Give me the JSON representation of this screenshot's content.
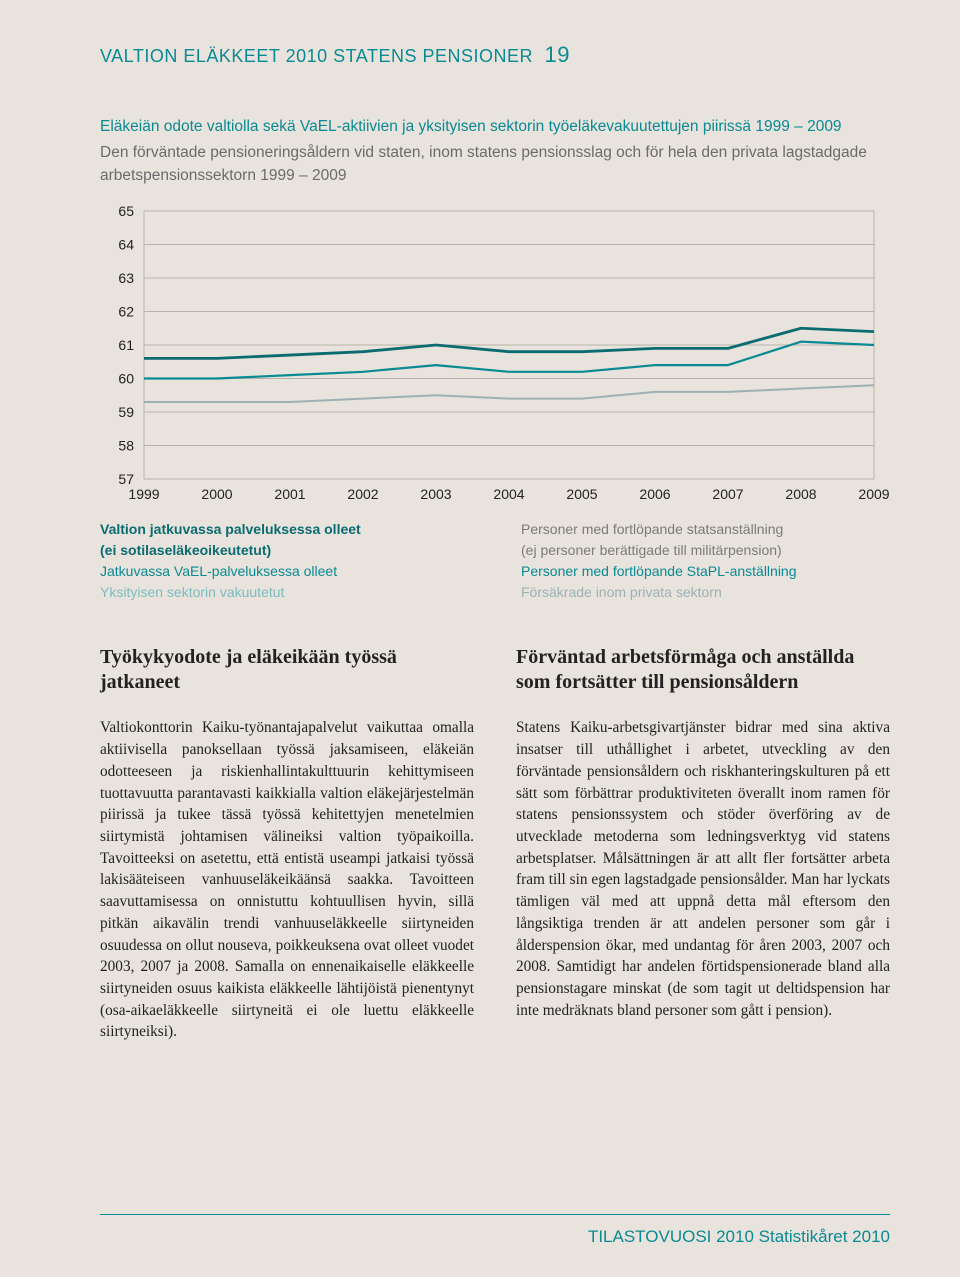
{
  "header": {
    "title": "VALTION ELÄKKEET 2010 STATENS PENSIONER",
    "page": "19"
  },
  "chart": {
    "type": "line",
    "title": "Eläkeiän odote valtiolla sekä VaEL-aktiivien ja yksityisen sektorin työeläkevakuutettujen piirissä 1999 – 2009",
    "subtitle": "Den förväntade pensioneringsåldern vid staten, inom statens pensionsslag och för hela den privata lagstadgade arbetspensionssektorn 1999 – 2009",
    "ylim": [
      57,
      65
    ],
    "ytick_step": 1,
    "xlabels": [
      "1999",
      "2000",
      "2001",
      "2002",
      "2003",
      "2004",
      "2005",
      "2006",
      "2007",
      "2008",
      "2009"
    ],
    "grid_color": "#b8b3aa",
    "plot_bg": "#e8e3dc",
    "series": [
      {
        "name": "valtio-jatkuva",
        "color": "#0a6b71",
        "width": 2.8,
        "values": [
          60.6,
          60.6,
          60.7,
          60.8,
          61.0,
          60.8,
          60.8,
          60.9,
          60.9,
          61.5,
          61.4
        ]
      },
      {
        "name": "vael-jatkuva",
        "color": "#0a8a93",
        "width": 2.2,
        "values": [
          60.0,
          60.0,
          60.1,
          60.2,
          60.4,
          60.2,
          60.2,
          60.4,
          60.4,
          61.1,
          61.0
        ]
      },
      {
        "name": "yksityinen",
        "color": "#9db1b3",
        "width": 2.0,
        "values": [
          59.3,
          59.3,
          59.3,
          59.4,
          59.5,
          59.4,
          59.4,
          59.6,
          59.6,
          59.7,
          59.8
        ]
      }
    ]
  },
  "legend": {
    "left": {
      "l1a": "Valtion jatkuvassa palveluksessa olleet",
      "l1b": "(ei sotilaseläkeoikeutetut)",
      "l2": "Jatkuvassa VaEL-palveluksessa olleet",
      "l3": "Yksityisen sektorin vakuutetut"
    },
    "right": {
      "l1a": "Personer med fortlöpande statsanställning",
      "l1b": "(ej personer berättigade till militärpension)",
      "l2": "Personer med fortlöpande StaPL-anställning",
      "l3": "Försäkrade inom privata sektorn"
    }
  },
  "body": {
    "left_heading": "Työkykyodote ja eläkeikään työssä jatkaneet",
    "left_text": "Valtiokonttorin Kaiku-työnantajapalvelut vaikuttaa omalla aktiivisella panoksellaan työssä jaksamiseen, eläkeiän odotteeseen ja riskienhallintakulttuurin kehittymiseen tuottavuutta parantavasti kaikkialla valtion eläkejärjestelmän piirissä ja tukee tässä työssä kehitettyjen menetelmien siirtymistä johtamisen välineiksi valtion työpaikoilla. Tavoitteeksi on asetettu, että entistä useampi jatkaisi työssä lakisääteiseen vanhuuseläkeikäänsä saakka. Tavoitteen saavuttamisessa on onnistuttu kohtuullisen hyvin, sillä pitkän aikavälin trendi vanhuuseläkkeelle siirtyneiden osuudessa on ollut nouseva, poikkeuksena ovat olleet vuodet 2003, 2007 ja 2008. Samalla on ennenaikaiselle eläkkeelle siirtyneiden osuus kaikista eläkkeelle lähtijöistä pienentynyt (osa-aikaeläkkeelle siirtyneitä ei ole luettu eläkkeelle siirtyneiksi).",
    "right_heading": "Förväntad arbetsförmåga och anställda som fortsätter till pensionsåldern",
    "right_text": "Statens Kaiku-arbetsgivartjänster bidrar med sina aktiva insatser till uthållighet i arbetet, utveckling av den förväntade pensionsåldern och riskhanteringskulturen på ett sätt som förbättrar produktiviteten överallt inom ramen för statens pensionssystem och stöder överföring av de utvecklade metoderna som ledningsverktyg vid statens arbetsplatser. Målsättningen är att allt fler fortsätter arbeta fram till sin egen lagstadgade pensionsålder. Man har lyckats tämligen väl med att uppnå detta mål eftersom den långsiktiga trenden är att andelen personer som går i ålderspension ökar, med undantag för åren 2003, 2007 och 2008. Samtidigt har andelen förtidspensionerade bland alla pensionstagare minskat (de som tagit ut deltidspension har inte medräknats bland personer som gått i pension)."
  },
  "footer": {
    "text": "TILASTOVUOSI 2010  Statistikåret 2010"
  }
}
